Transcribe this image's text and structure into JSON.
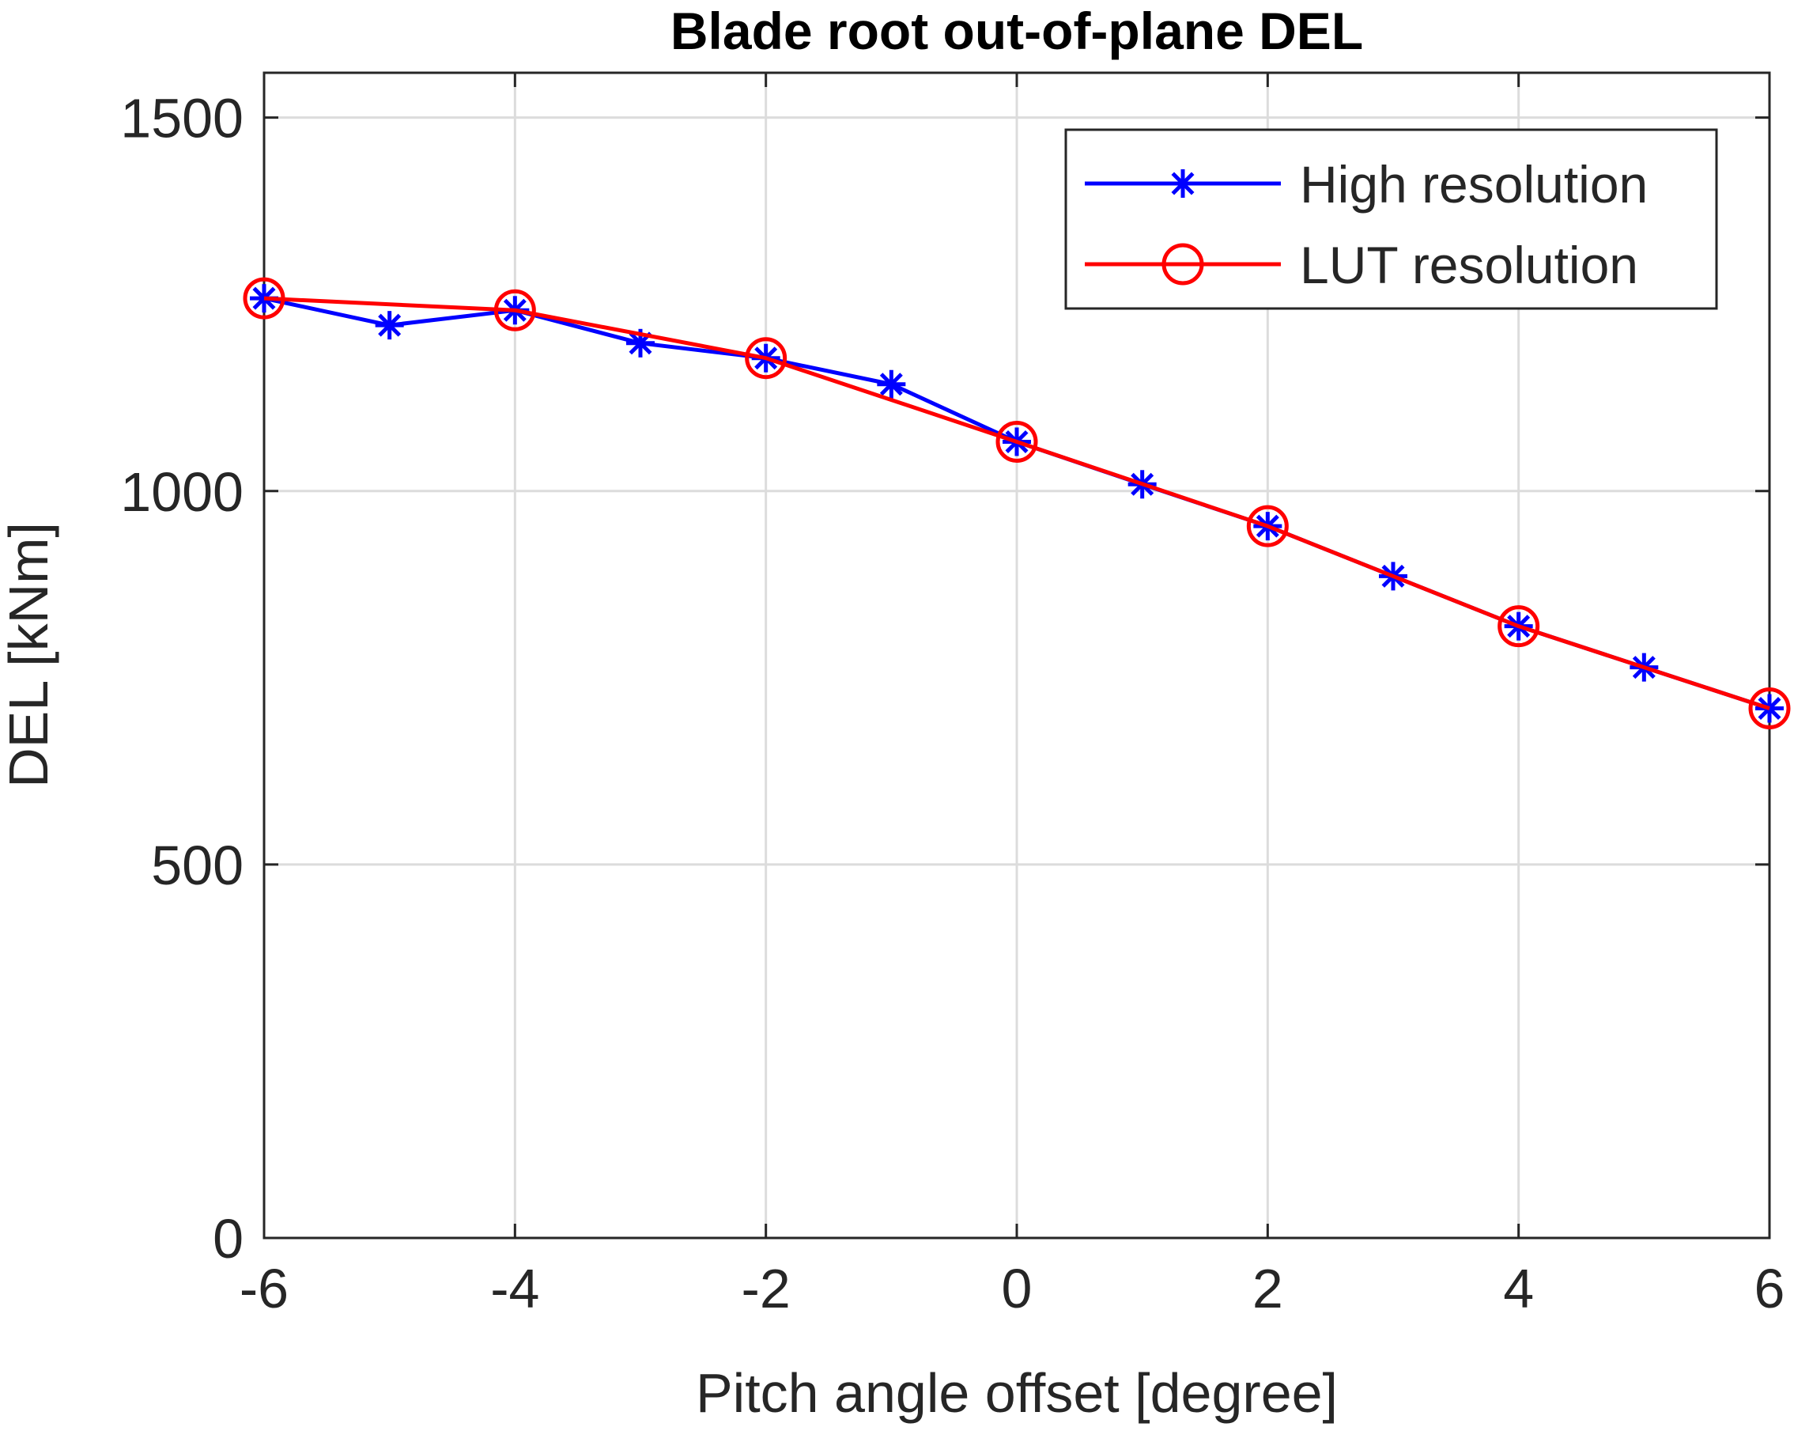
{
  "chart_data": {
    "type": "line",
    "title": "Blade root out-of-plane DEL",
    "xlabel": "Pitch angle offset [degree]",
    "ylabel": "DEL [kNm]",
    "xlim": [
      -6,
      6
    ],
    "ylim": [
      0,
      1500
    ],
    "xticks": [
      -6,
      -4,
      -2,
      0,
      2,
      4,
      6
    ],
    "xtick_labels": [
      "-6",
      "-4",
      "-2",
      "0",
      "2",
      "4",
      "6"
    ],
    "yticks": [
      0,
      500,
      1000,
      1500
    ],
    "ytick_labels": [
      "0",
      "500",
      "1000",
      "1500"
    ],
    "grid": true,
    "legend_position": "top-right",
    "series": [
      {
        "name": "High resolution",
        "color": "#0000ff",
        "marker": "asterisk",
        "x": [
          -6,
          -5,
          -4,
          -3,
          -2,
          -1,
          0,
          1,
          2,
          3,
          4,
          5,
          6
        ],
        "y": [
          1258,
          1222,
          1242,
          1198,
          1178,
          1143,
          1066,
          1009,
          953,
          886,
          819,
          764,
          709
        ]
      },
      {
        "name": "LUT resolution",
        "color": "#ff0000",
        "marker": "circle",
        "x": [
          -6,
          -4,
          -2,
          0,
          2,
          4,
          6
        ],
        "y": [
          1258,
          1242,
          1178,
          1066,
          953,
          819,
          709
        ]
      }
    ]
  }
}
